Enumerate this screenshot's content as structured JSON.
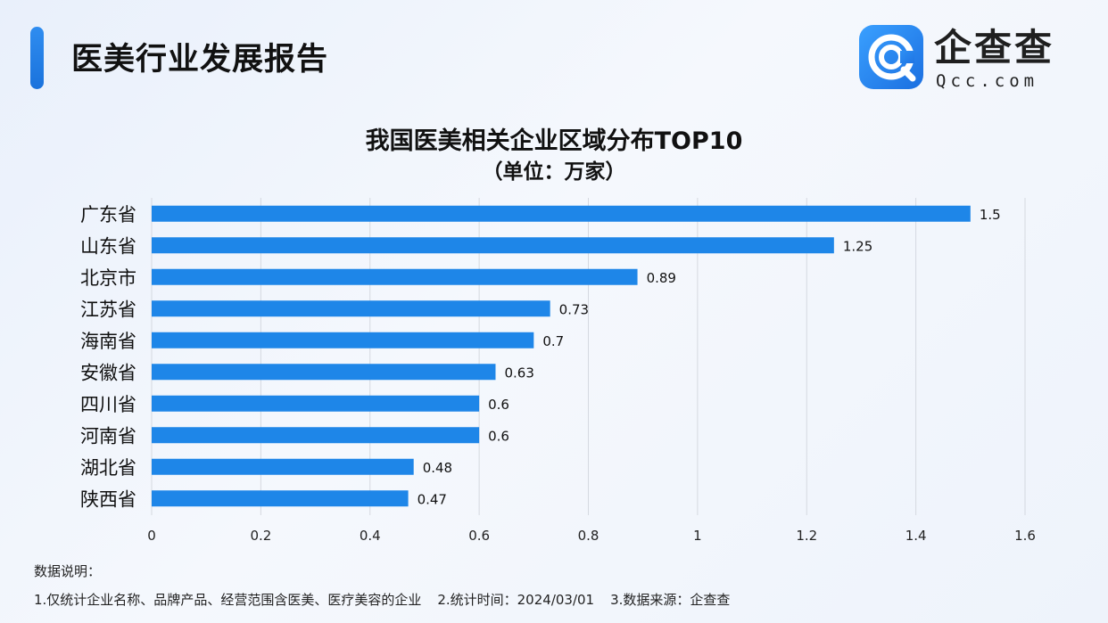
{
  "header": {
    "title": "医美行业发展报告",
    "accent_color": "#1e7ee6"
  },
  "logo": {
    "icon": "qcc-logo-icon",
    "name": "企查查",
    "domain": "Qcc.com"
  },
  "chart_data": {
    "type": "bar",
    "orientation": "horizontal",
    "title": "我国医美相关企业区域分布TOP10",
    "subtitle": "（单位：万家）",
    "categories": [
      "广东省",
      "山东省",
      "北京市",
      "江苏省",
      "海南省",
      "安徽省",
      "四川省",
      "河南省",
      "湖北省",
      "陕西省"
    ],
    "values": [
      1.5,
      1.25,
      0.89,
      0.73,
      0.7,
      0.63,
      0.6,
      0.6,
      0.48,
      0.47
    ],
    "value_labels": [
      "1.5",
      "1.25",
      "0.89",
      "0.73",
      "0.7",
      "0.63",
      "0.6",
      "0.6",
      "0.48",
      "0.47"
    ],
    "xlim": [
      0,
      1.6
    ],
    "xticks": [
      "0",
      "0.2",
      "0.4",
      "0.6",
      "0.8",
      "1",
      "1.2",
      "1.4",
      "1.6"
    ],
    "grid": "vertical",
    "bar_color": "#1e86e8"
  },
  "notes": {
    "title": "数据说明：",
    "items": [
      "1.仅统计企业名称、品牌产品、经营范围含医美、医疗美容的企业",
      "2.统计时间：2024/03/01",
      "3.数据来源：企查查"
    ]
  }
}
